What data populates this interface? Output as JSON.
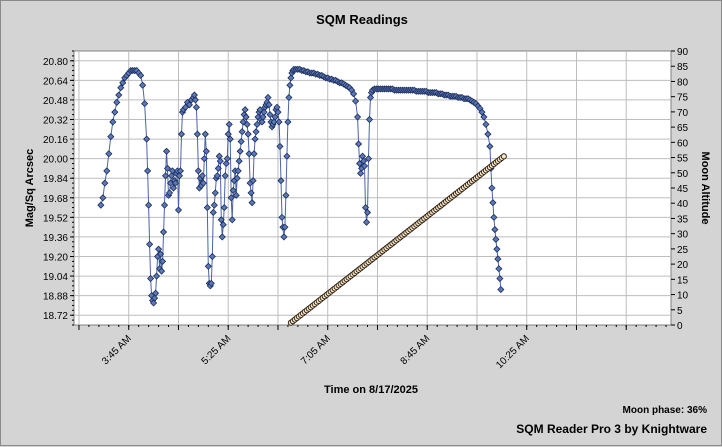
{
  "chart_data": {
    "type": "scatter",
    "title": "SQM Readings",
    "xlabel": "Time on 8/17/2025",
    "ylabel": "Mag/Sq Arcsec",
    "y2label": "Moon Altitude",
    "x_ticks": [
      "3:45 AM",
      "5:25 AM",
      "7:05 AM",
      "8:45 AM",
      "10:25 AM"
    ],
    "x_tick_minutes": [
      225,
      325,
      425,
      525,
      625
    ],
    "x_range_minutes": [
      170,
      770
    ],
    "ylim": [
      18.64,
      20.88
    ],
    "y_ticks": [
      18.72,
      18.88,
      19.04,
      19.2,
      19.36,
      19.52,
      19.68,
      19.84,
      20.0,
      20.16,
      20.32,
      20.48,
      20.64,
      20.8
    ],
    "y2lim": [
      0,
      90
    ],
    "y2_ticks": [
      0,
      5,
      10,
      15,
      20,
      25,
      30,
      35,
      40,
      45,
      50,
      55,
      60,
      65,
      70,
      75,
      80,
      85,
      90
    ],
    "grid": true,
    "series": [
      {
        "axis": "left",
        "color": "#5b78b8",
        "points": [
          [
            197,
            19.62
          ],
          [
            199,
            19.68
          ],
          [
            201,
            19.8
          ],
          [
            203,
            19.9
          ],
          [
            205,
            20.04
          ],
          [
            207,
            20.18
          ],
          [
            209,
            20.3
          ],
          [
            211,
            20.38
          ],
          [
            213,
            20.46
          ],
          [
            215,
            20.52
          ],
          [
            217,
            20.58
          ],
          [
            219,
            20.62
          ],
          [
            221,
            20.66
          ],
          [
            223,
            20.68
          ],
          [
            225,
            20.7
          ],
          [
            227,
            20.72
          ],
          [
            229,
            20.72
          ],
          [
            231,
            20.72
          ],
          [
            233,
            20.72
          ],
          [
            235,
            20.7
          ],
          [
            237,
            20.68
          ],
          [
            239,
            20.6
          ],
          [
            241,
            20.45
          ],
          [
            243,
            20.16
          ],
          [
            244,
            19.9
          ],
          [
            245,
            19.62
          ],
          [
            246,
            19.3
          ],
          [
            247,
            19.02
          ],
          [
            248,
            18.88
          ],
          [
            249,
            18.84
          ],
          [
            250,
            18.82
          ],
          [
            251,
            18.86
          ],
          [
            252,
            18.9
          ],
          [
            253,
            19.04
          ],
          [
            254,
            19.2
          ],
          [
            255,
            19.26
          ],
          [
            256,
            19.1
          ],
          [
            257,
            19.22
          ],
          [
            258,
            19.08
          ],
          [
            259,
            19.16
          ],
          [
            260,
            19.4
          ],
          [
            261,
            19.62
          ],
          [
            262,
            19.86
          ],
          [
            263,
            20.06
          ],
          [
            264,
            19.92
          ],
          [
            265,
            19.7
          ],
          [
            266,
            19.72
          ],
          [
            267,
            19.8
          ],
          [
            268,
            19.86
          ],
          [
            269,
            19.9
          ],
          [
            270,
            19.76
          ],
          [
            271,
            19.82
          ],
          [
            272,
            19.8
          ],
          [
            273,
            19.88
          ],
          [
            274,
            19.9
          ],
          [
            275,
            19.58
          ],
          [
            276,
            19.86
          ],
          [
            277,
            19.9
          ],
          [
            278,
            20.2
          ],
          [
            279,
            20.38
          ],
          [
            280,
            20.4
          ],
          [
            282,
            20.42
          ],
          [
            284,
            20.46
          ],
          [
            286,
            20.44
          ],
          [
            288,
            20.48
          ],
          [
            290,
            20.5
          ],
          [
            291,
            20.52
          ],
          [
            292,
            20.48
          ],
          [
            293,
            20.42
          ],
          [
            294,
            20.2
          ],
          [
            295,
            19.9
          ],
          [
            296,
            19.76
          ],
          [
            297,
            19.84
          ],
          [
            298,
            19.78
          ],
          [
            299,
            19.86
          ],
          [
            300,
            19.8
          ],
          [
            301,
            20.0
          ],
          [
            302,
            20.2
          ],
          [
            303,
            20.06
          ],
          [
            304,
            19.6
          ],
          [
            305,
            19.12
          ],
          [
            306,
            18.98
          ],
          [
            307,
            18.96
          ],
          [
            308,
            18.98
          ],
          [
            309,
            19.2
          ],
          [
            310,
            19.56
          ],
          [
            311,
            19.62
          ],
          [
            312,
            19.72
          ],
          [
            313,
            19.84
          ],
          [
            314,
            19.86
          ],
          [
            315,
            19.92
          ],
          [
            316,
            20.02
          ],
          [
            317,
            19.98
          ],
          [
            318,
            19.5
          ],
          [
            319,
            19.36
          ],
          [
            320,
            19.46
          ],
          [
            321,
            19.6
          ],
          [
            322,
            19.86
          ],
          [
            323,
            19.96
          ],
          [
            324,
            20.0
          ],
          [
            325,
            20.2
          ],
          [
            326,
            20.28
          ],
          [
            327,
            20.16
          ],
          [
            328,
            19.68
          ],
          [
            329,
            19.5
          ],
          [
            330,
            19.74
          ],
          [
            331,
            19.82
          ],
          [
            332,
            19.9
          ],
          [
            333,
            19.7
          ],
          [
            334,
            19.84
          ],
          [
            335,
            19.9
          ],
          [
            336,
            19.98
          ],
          [
            337,
            20.06
          ],
          [
            338,
            20.14
          ],
          [
            339,
            20.22
          ],
          [
            340,
            20.3
          ],
          [
            341,
            20.36
          ],
          [
            342,
            20.4
          ],
          [
            343,
            20.34
          ],
          [
            344,
            20.28
          ],
          [
            345,
            20.2
          ],
          [
            346,
            20.04
          ],
          [
            347,
            19.8
          ],
          [
            348,
            19.72
          ],
          [
            349,
            19.64
          ],
          [
            350,
            19.82
          ],
          [
            351,
            20.04
          ],
          [
            352,
            20.16
          ],
          [
            353,
            20.22
          ],
          [
            354,
            20.28
          ],
          [
            355,
            20.34
          ],
          [
            356,
            20.38
          ],
          [
            357,
            20.4
          ],
          [
            358,
            20.32
          ],
          [
            359,
            20.3
          ],
          [
            360,
            20.34
          ],
          [
            361,
            20.38
          ],
          [
            362,
            20.42
          ],
          [
            363,
            20.44
          ],
          [
            364,
            20.46
          ],
          [
            365,
            20.5
          ],
          [
            366,
            20.44
          ],
          [
            367,
            20.36
          ],
          [
            368,
            20.3
          ],
          [
            369,
            20.26
          ],
          [
            370,
            20.28
          ],
          [
            371,
            20.3
          ],
          [
            372,
            20.34
          ],
          [
            373,
            20.4
          ],
          [
            374,
            20.42
          ],
          [
            375,
            20.38
          ],
          [
            376,
            20.3
          ],
          [
            377,
            20.1
          ],
          [
            378,
            19.82
          ],
          [
            379,
            19.52
          ],
          [
            380,
            19.44
          ],
          [
            381,
            19.36
          ],
          [
            382,
            19.44
          ],
          [
            383,
            19.7
          ],
          [
            384,
            20.02
          ],
          [
            385,
            20.3
          ],
          [
            386,
            20.5
          ],
          [
            387,
            20.6
          ],
          [
            388,
            20.66
          ],
          [
            389,
            20.7
          ],
          [
            390,
            20.72
          ],
          [
            391,
            20.73
          ],
          [
            393,
            20.73
          ],
          [
            395,
            20.73
          ],
          [
            397,
            20.73
          ],
          [
            399,
            20.72
          ],
          [
            401,
            20.72
          ],
          [
            403,
            20.71
          ],
          [
            405,
            20.71
          ],
          [
            407,
            20.7
          ],
          [
            409,
            20.7
          ],
          [
            411,
            20.7
          ],
          [
            413,
            20.69
          ],
          [
            415,
            20.69
          ],
          [
            417,
            20.68
          ],
          [
            419,
            20.68
          ],
          [
            421,
            20.67
          ],
          [
            423,
            20.66
          ],
          [
            425,
            20.66
          ],
          [
            427,
            20.65
          ],
          [
            429,
            20.65
          ],
          [
            431,
            20.64
          ],
          [
            433,
            20.64
          ],
          [
            435,
            20.63
          ],
          [
            437,
            20.62
          ],
          [
            439,
            20.62
          ],
          [
            441,
            20.61
          ],
          [
            443,
            20.6
          ],
          [
            445,
            20.59
          ],
          [
            447,
            20.58
          ],
          [
            449,
            20.56
          ],
          [
            451,
            20.53
          ],
          [
            453,
            20.47
          ],
          [
            455,
            20.34
          ],
          [
            456,
            20.12
          ],
          [
            457,
            19.96
          ],
          [
            458,
            19.88
          ],
          [
            459,
            19.92
          ],
          [
            460,
            20.02
          ],
          [
            461,
            19.98
          ],
          [
            462,
            19.94
          ],
          [
            463,
            19.6
          ],
          [
            464,
            19.48
          ],
          [
            465,
            19.56
          ],
          [
            466,
            20.0
          ],
          [
            467,
            20.32
          ],
          [
            468,
            20.5
          ],
          [
            469,
            20.54
          ],
          [
            470,
            20.56
          ],
          [
            472,
            20.57
          ],
          [
            474,
            20.57
          ],
          [
            476,
            20.57
          ],
          [
            478,
            20.57
          ],
          [
            480,
            20.57
          ],
          [
            482,
            20.57
          ],
          [
            484,
            20.57
          ],
          [
            486,
            20.57
          ],
          [
            488,
            20.57
          ],
          [
            490,
            20.57
          ],
          [
            492,
            20.56
          ],
          [
            494,
            20.56
          ],
          [
            496,
            20.56
          ],
          [
            498,
            20.56
          ],
          [
            500,
            20.56
          ],
          [
            502,
            20.56
          ],
          [
            504,
            20.56
          ],
          [
            506,
            20.56
          ],
          [
            508,
            20.56
          ],
          [
            510,
            20.56
          ],
          [
            512,
            20.56
          ],
          [
            514,
            20.55
          ],
          [
            516,
            20.55
          ],
          [
            518,
            20.55
          ],
          [
            520,
            20.55
          ],
          [
            522,
            20.55
          ],
          [
            524,
            20.55
          ],
          [
            526,
            20.54
          ],
          [
            528,
            20.54
          ],
          [
            530,
            20.54
          ],
          [
            532,
            20.54
          ],
          [
            534,
            20.54
          ],
          [
            536,
            20.53
          ],
          [
            538,
            20.53
          ],
          [
            540,
            20.53
          ],
          [
            542,
            20.52
          ],
          [
            544,
            20.52
          ],
          [
            546,
            20.52
          ],
          [
            548,
            20.51
          ],
          [
            550,
            20.51
          ],
          [
            552,
            20.51
          ],
          [
            554,
            20.51
          ],
          [
            556,
            20.5
          ],
          [
            558,
            20.5
          ],
          [
            560,
            20.5
          ],
          [
            562,
            20.49
          ],
          [
            564,
            20.49
          ],
          [
            566,
            20.49
          ],
          [
            568,
            20.48
          ],
          [
            570,
            20.47
          ],
          [
            572,
            20.46
          ],
          [
            574,
            20.45
          ],
          [
            576,
            20.43
          ],
          [
            578,
            20.41
          ],
          [
            580,
            20.38
          ],
          [
            582,
            20.34
          ],
          [
            584,
            20.28
          ],
          [
            586,
            20.2
          ],
          [
            588,
            20.1
          ],
          [
            589,
            19.92
          ],
          [
            590,
            19.76
          ],
          [
            591,
            19.64
          ],
          [
            592,
            19.52
          ],
          [
            593,
            19.42
          ],
          [
            594,
            19.34
          ],
          [
            595,
            19.26
          ],
          [
            596,
            19.18
          ],
          [
            597,
            19.1
          ],
          [
            598,
            19.02
          ],
          [
            599,
            18.93
          ]
        ]
      },
      {
        "axis": "right",
        "color": "#f4e7c4",
        "points_from": [
          388,
          0.75
        ],
        "points_to": [
          602,
          55.4
        ],
        "points_step_minutes": 2
      }
    ]
  },
  "footer": {
    "moon_phase": "Moon phase: 36%",
    "credit": "SQM Reader Pro 3 by Knightware"
  }
}
